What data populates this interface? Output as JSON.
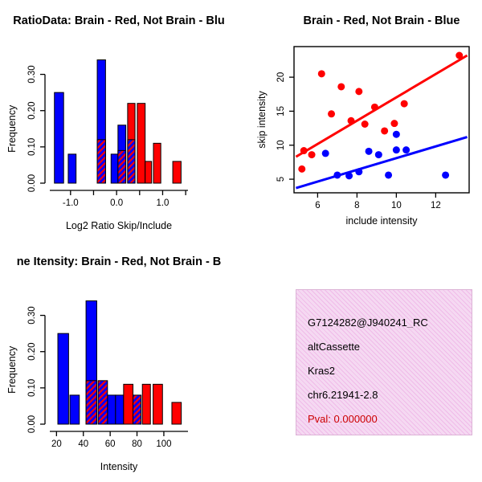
{
  "palette": {
    "red": "#ff0000",
    "blue": "#0000ff",
    "axis": "#000000",
    "background": "#ffffff",
    "info_box_bg": "#f5d9f2"
  },
  "chart_data": [
    {
      "type": "bar",
      "panel": "top-left",
      "title": "RatioData: Brain - Red, Not Brain - Blu",
      "xlabel": "Log2 Ratio Skip/Include",
      "ylabel": "Frequency",
      "xlim": [
        -1.45,
        1.55
      ],
      "ylim": [
        0,
        0.35
      ],
      "xticks": [
        -1.0,
        0.0,
        1.0
      ],
      "xtick_labels": [
        "-1.0",
        "0.0",
        "1.0"
      ],
      "xticks_all": [
        -1.0,
        -0.5,
        0.0,
        0.5,
        1.0,
        1.5
      ],
      "yticks": [
        0.0,
        0.1,
        0.2,
        0.3
      ],
      "ytick_labels": [
        "0.00",
        "0.10",
        "0.20",
        "0.30"
      ],
      "bars": [
        {
          "x0": -1.35,
          "x1": -1.15,
          "h": 0.25,
          "series": "blue"
        },
        {
          "x0": -1.05,
          "x1": -0.88,
          "h": 0.08,
          "series": "blue"
        },
        {
          "x0": -0.42,
          "x1": -0.24,
          "h": 0.34,
          "series": "blue"
        },
        {
          "x0": -0.12,
          "x1": 0.03,
          "h": 0.08,
          "series": "blue"
        },
        {
          "x0": 0.03,
          "x1": 0.2,
          "h": 0.16,
          "series": "blue"
        },
        {
          "x0": 0.24,
          "x1": 0.4,
          "h": 0.22,
          "series": "red"
        },
        {
          "x0": 0.45,
          "x1": 0.62,
          "h": 0.22,
          "series": "red"
        },
        {
          "x0": 0.62,
          "x1": 0.76,
          "h": 0.06,
          "series": "red"
        },
        {
          "x0": 0.8,
          "x1": 0.96,
          "h": 0.11,
          "series": "red"
        },
        {
          "x0": 1.22,
          "x1": 1.4,
          "h": 0.06,
          "series": "red"
        },
        {
          "x0": -0.42,
          "x1": -0.24,
          "h": 0.12,
          "series": "overlap"
        },
        {
          "x0": 0.03,
          "x1": 0.2,
          "h": 0.09,
          "series": "overlap"
        },
        {
          "x0": 0.24,
          "x1": 0.4,
          "h": 0.12,
          "series": "overlap"
        }
      ]
    },
    {
      "type": "scatter",
      "panel": "top-right",
      "title": "Brain - Red, Not Brain - Blue",
      "xlabel": "include intensity",
      "ylabel": "skip intensity",
      "xlim": [
        4.8,
        13.7
      ],
      "ylim": [
        3.0,
        24.5
      ],
      "xticks": [
        6,
        8,
        10,
        12
      ],
      "xtick_labels": [
        "6",
        "8",
        "10",
        "12"
      ],
      "yticks": [
        5,
        10,
        15,
        20
      ],
      "ytick_labels": [
        "5",
        "10",
        "15",
        "20"
      ],
      "series": [
        {
          "name": "brain",
          "color_key": "red",
          "points": [
            [
              5.2,
              6.5
            ],
            [
              5.3,
              9.2
            ],
            [
              5.7,
              8.6
            ],
            [
              6.2,
              20.5
            ],
            [
              6.7,
              14.6
            ],
            [
              7.2,
              18.6
            ],
            [
              7.7,
              13.6
            ],
            [
              8.1,
              17.9
            ],
            [
              8.4,
              13.1
            ],
            [
              8.9,
              15.6
            ],
            [
              9.4,
              12.1
            ],
            [
              9.9,
              13.2
            ],
            [
              10.4,
              16.1
            ],
            [
              13.2,
              23.2
            ]
          ],
          "fit_line": {
            "x0": 4.9,
            "y0": 8.3,
            "x1": 13.6,
            "y1": 23.2
          }
        },
        {
          "name": "not-brain",
          "color_key": "blue",
          "points": [
            [
              6.4,
              8.8
            ],
            [
              7.0,
              5.6
            ],
            [
              7.6,
              5.5
            ],
            [
              8.1,
              6.1
            ],
            [
              8.6,
              9.1
            ],
            [
              9.1,
              8.6
            ],
            [
              9.6,
              5.6
            ],
            [
              10.0,
              11.6
            ],
            [
              10.0,
              9.3
            ],
            [
              10.5,
              9.3
            ],
            [
              12.5,
              5.6
            ]
          ],
          "fit_line": {
            "x0": 4.9,
            "y0": 3.7,
            "x1": 13.6,
            "y1": 11.2
          }
        }
      ]
    },
    {
      "type": "bar",
      "panel": "bottom-left",
      "title": "ne Itensity: Brain - Red, Not Brain - B",
      "xlabel": "Intensity",
      "ylabel": "Frequency",
      "xlim": [
        15,
        118
      ],
      "ylim": [
        0,
        0.35
      ],
      "xticks": [
        20,
        40,
        60,
        80,
        100
      ],
      "xtick_labels": [
        "20",
        "40",
        "60",
        "80",
        "100"
      ],
      "xticks_all": [
        20,
        40,
        60,
        80,
        100
      ],
      "yticks": [
        0.0,
        0.1,
        0.2,
        0.3
      ],
      "ytick_labels": [
        "0.00",
        "0.10",
        "0.20",
        "0.30"
      ],
      "bars": [
        {
          "x0": 21,
          "x1": 29,
          "h": 0.25,
          "series": "blue"
        },
        {
          "x0": 30,
          "x1": 37,
          "h": 0.08,
          "series": "blue"
        },
        {
          "x0": 42,
          "x1": 50,
          "h": 0.34,
          "series": "blue"
        },
        {
          "x0": 58,
          "x1": 64,
          "h": 0.08,
          "series": "blue"
        },
        {
          "x0": 64,
          "x1": 70,
          "h": 0.08,
          "series": "blue"
        },
        {
          "x0": 70,
          "x1": 77,
          "h": 0.11,
          "series": "red"
        },
        {
          "x0": 84,
          "x1": 90,
          "h": 0.11,
          "series": "red"
        },
        {
          "x0": 92,
          "x1": 99,
          "h": 0.11,
          "series": "red"
        },
        {
          "x0": 106,
          "x1": 113,
          "h": 0.06,
          "series": "red"
        },
        {
          "x0": 42,
          "x1": 50,
          "h": 0.12,
          "series": "overlap"
        },
        {
          "x0": 51,
          "x1": 58,
          "h": 0.12,
          "series": "overlap"
        },
        {
          "x0": 77,
          "x1": 83,
          "h": 0.08,
          "series": "overlap"
        }
      ]
    }
  ],
  "info_box": {
    "lines": [
      {
        "text": "G7124282@J940241_RC",
        "color": "#000000"
      },
      {
        "text": "altCassette",
        "color": "#000000"
      },
      {
        "text": "Kras2",
        "color": "#000000"
      },
      {
        "text": "chr6.21941-2.8",
        "color": "#000000"
      },
      {
        "text": "Pval: 0.000000",
        "color": "#cc0000"
      }
    ]
  }
}
